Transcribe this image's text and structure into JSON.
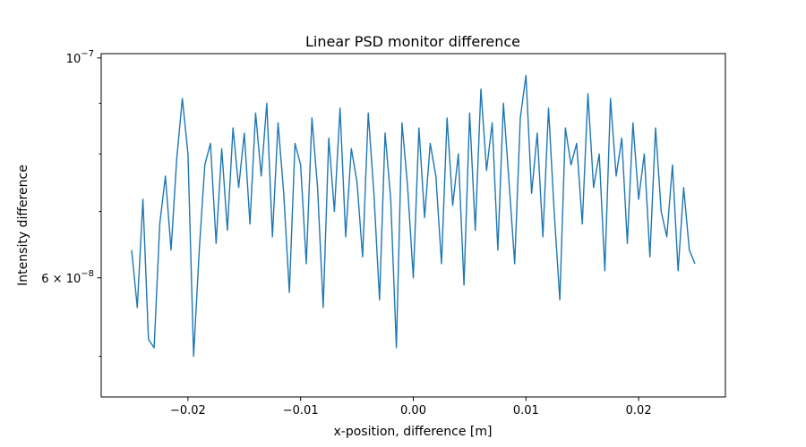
{
  "chart_data": {
    "type": "line",
    "title": "Linear PSD monitor difference",
    "xlabel": "x-position, difference [m]",
    "ylabel": "Intensity difference",
    "xlim": [
      -0.0277,
      0.0277
    ],
    "ylim": [
      4.55e-08,
      1.01e-07
    ],
    "yscale": "log",
    "grid": false,
    "x_ticks": [
      {
        "value": -0.02,
        "label": "−0.02"
      },
      {
        "value": -0.01,
        "label": "−0.01"
      },
      {
        "value": 0.0,
        "label": "0.00"
      },
      {
        "value": 0.01,
        "label": "0.01"
      },
      {
        "value": 0.02,
        "label": "0.02"
      }
    ],
    "y_major_ticks": [
      {
        "value": 1e-07,
        "base": "10",
        "exp": "−7"
      },
      {
        "value": 6e-08,
        "mant": "6",
        "base": "10",
        "exp": "−8"
      }
    ],
    "y_minor_ticks": [
      5e-08,
      7e-08,
      8e-08,
      9e-08
    ],
    "series": [
      {
        "color": "#1f77b4",
        "x": [
          -0.025,
          -0.0245,
          -0.024,
          -0.0235,
          -0.023,
          -0.0225,
          -0.022,
          -0.0215,
          -0.021,
          -0.0205,
          -0.02,
          -0.0195,
          -0.019,
          -0.0185,
          -0.018,
          -0.0175,
          -0.017,
          -0.0165,
          -0.016,
          -0.0155,
          -0.015,
          -0.0145,
          -0.014,
          -0.0135,
          -0.013,
          -0.0125,
          -0.012,
          -0.0115,
          -0.011,
          -0.0105,
          -0.01,
          -0.0095,
          -0.009,
          -0.0085,
          -0.008,
          -0.0075,
          -0.007,
          -0.0065,
          -0.006,
          -0.0055,
          -0.005,
          -0.0045,
          -0.004,
          -0.0035,
          -0.003,
          -0.0025,
          -0.002,
          -0.0015,
          -0.001,
          -0.0005,
          0.0,
          0.0005,
          0.001,
          0.0015,
          0.002,
          0.0025,
          0.003,
          0.0035,
          0.004,
          0.0045,
          0.005,
          0.0055,
          0.006,
          0.0065,
          0.007,
          0.0075,
          0.008,
          0.0085,
          0.009,
          0.0095,
          0.01,
          0.0105,
          0.011,
          0.0115,
          0.012,
          0.0125,
          0.013,
          0.0135,
          0.014,
          0.0145,
          0.015,
          0.0155,
          0.016,
          0.0165,
          0.017,
          0.0175,
          0.018,
          0.0185,
          0.019,
          0.0195,
          0.02,
          0.0205,
          0.021,
          0.0215,
          0.022,
          0.0225,
          0.023,
          0.0235,
          0.024,
          0.0245,
          0.025
        ],
        "y": [
          6.4e-08,
          5.6e-08,
          7.2e-08,
          5.2e-08,
          5.1e-08,
          6.8e-08,
          7.6e-08,
          6.4e-08,
          7.9e-08,
          9.1e-08,
          8e-08,
          5e-08,
          6.4e-08,
          7.8e-08,
          8.2e-08,
          6.5e-08,
          8.1e-08,
          6.7e-08,
          8.5e-08,
          7.4e-08,
          8.4e-08,
          6.8e-08,
          8.8e-08,
          7.6e-08,
          9e-08,
          6.6e-08,
          8.6e-08,
          7.3e-08,
          5.8e-08,
          8.2e-08,
          7.8e-08,
          6.2e-08,
          8.7e-08,
          7.4e-08,
          5.6e-08,
          8.3e-08,
          7e-08,
          8.9e-08,
          6.6e-08,
          8.1e-08,
          7.5e-08,
          6.3e-08,
          8.8e-08,
          7.3e-08,
          5.7e-08,
          8.4e-08,
          7.2e-08,
          5.1e-08,
          8.6e-08,
          7.4e-08,
          6e-08,
          8.5e-08,
          6.9e-08,
          8.2e-08,
          7.6e-08,
          6.2e-08,
          8.7e-08,
          7.1e-08,
          8e-08,
          5.9e-08,
          8.8e-08,
          6.7e-08,
          9.3e-08,
          7.7e-08,
          8.6e-08,
          6.4e-08,
          9e-08,
          7.5e-08,
          6.2e-08,
          8.7e-08,
          9.6e-08,
          7.3e-08,
          8.4e-08,
          6.6e-08,
          8.9e-08,
          7e-08,
          5.7e-08,
          8.5e-08,
          7.8e-08,
          8.2e-08,
          6.8e-08,
          9.2e-08,
          7.4e-08,
          8e-08,
          6.1e-08,
          9.1e-08,
          7.6e-08,
          8.3e-08,
          6.5e-08,
          8.6e-08,
          7.2e-08,
          8e-08,
          6.3e-08,
          8.5e-08,
          7e-08,
          6.6e-08,
          7.8e-08,
          6.1e-08,
          7.4e-08,
          6.4e-08,
          6.2e-08
        ]
      }
    ]
  }
}
